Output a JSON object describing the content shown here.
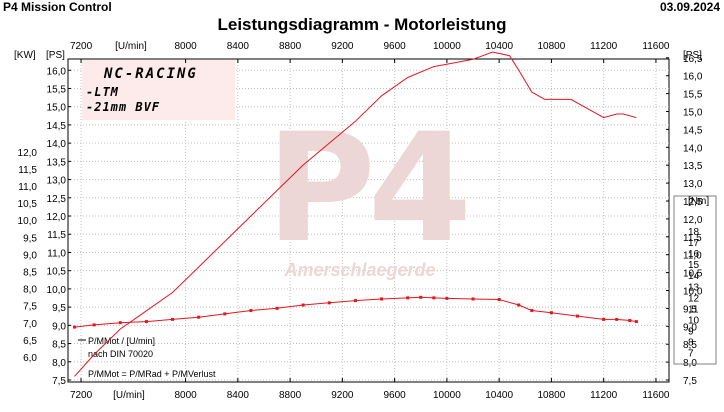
{
  "header": {
    "app_title": "P4 Mission Control",
    "date": "03.09.2024",
    "chart_title": "Leistungsdiagramm - Motorleistung"
  },
  "colors": {
    "curve": "#e4171f",
    "grid": "#c0c0c0",
    "plot_background": "#ffffff",
    "label_box": "#fdeaea",
    "watermark": "#edd6d6"
  },
  "label_box": {
    "title": "NC-RACING",
    "line1": "-LTM",
    "line2": "-21mm BVF"
  },
  "watermark": {
    "logo": "P4",
    "text": "Amerschlaegerde"
  },
  "legend_text": {
    "line1": "P/MMot / [U/min]",
    "line2": "nach DIN 70020",
    "line3": "P/MMot = P/MRad + P/MVerlust"
  },
  "chart_data": {
    "type": "line",
    "title": "Leistungsdiagramm - Motorleistung",
    "x_axis": {
      "label": "[U/min]",
      "range": [
        7100,
        11700
      ],
      "ticks": [
        7200,
        8000,
        8400,
        8800,
        9200,
        9600,
        10000,
        10400,
        10800,
        11200,
        11600
      ]
    },
    "y_axes": {
      "kw": {
        "unit": "[KW]",
        "range": [
          5.5,
          12.0
        ],
        "ticks": [
          "12,0",
          "11,5",
          "11,0",
          "10,5",
          "10,0",
          "9,5",
          "9,0",
          "8,5",
          "8,0",
          "7,5",
          "7,0",
          "6,5",
          "6,0"
        ]
      },
      "ps_left": {
        "unit": "[PS]",
        "range": [
          7.5,
          16.5
        ],
        "ticks": [
          "16,0",
          "15,5",
          "15,0",
          "14,5",
          "14,0",
          "13,5",
          "13,0",
          "12,5",
          "12,0",
          "11,5",
          "11,0",
          "10,5",
          "10,0",
          "9,5",
          "9,0",
          "8,5",
          "8,0",
          "7,5"
        ]
      },
      "ps_right": {
        "unit": "[PS]",
        "range": [
          7.5,
          16.5
        ],
        "ticks": [
          "16,5",
          "16,0",
          "15,5",
          "15,0",
          "14,5",
          "14,0",
          "13,5",
          "13,0",
          "12,5",
          "12,0",
          "11,5",
          "11,0",
          "10,5",
          "10,0",
          "9,5",
          "9,0",
          "8,5",
          "8,0",
          "7,5"
        ]
      },
      "nm": {
        "unit": "[Nm]",
        "range": [
          6,
          19
        ],
        "ticks": [
          "18",
          "17",
          "16",
          "15",
          "14",
          "13",
          "12",
          "11",
          "10",
          "9",
          "8",
          "7"
        ]
      }
    },
    "series": [
      {
        "axis": "ps",
        "x": [
          7150,
          7300,
          7500,
          7700,
          7900,
          8100,
          8300,
          8500,
          8700,
          8900,
          9100,
          9300,
          9500,
          9700,
          9900,
          10050,
          10200,
          10350,
          10480,
          10550,
          10650,
          10750,
          10950,
          11100,
          11200,
          11300,
          11350,
          11450
        ],
        "y": [
          7.6,
          8.2,
          8.9,
          9.4,
          9.9,
          10.6,
          11.3,
          12.0,
          12.7,
          13.4,
          14.0,
          14.6,
          15.3,
          15.8,
          16.1,
          16.2,
          16.3,
          16.5,
          16.4,
          16.0,
          15.4,
          15.2,
          15.2,
          14.9,
          14.7,
          14.8,
          14.8,
          14.7
        ]
      },
      {
        "axis": "nm",
        "x": [
          7150,
          7300,
          7500,
          7700,
          7900,
          8100,
          8300,
          8500,
          8700,
          8900,
          9100,
          9300,
          9500,
          9700,
          9800,
          9900,
          10000,
          10200,
          10400,
          10550,
          10650,
          10800,
          11000,
          11200,
          11300,
          11400,
          11450
        ],
        "y": [
          9.3,
          9.5,
          9.7,
          9.8,
          10.0,
          10.2,
          10.5,
          10.8,
          11.0,
          11.3,
          11.5,
          11.7,
          11.85,
          11.95,
          12.0,
          11.95,
          11.9,
          11.85,
          11.8,
          11.3,
          10.8,
          10.6,
          10.3,
          10.0,
          10.0,
          9.9,
          9.8
        ]
      }
    ]
  }
}
